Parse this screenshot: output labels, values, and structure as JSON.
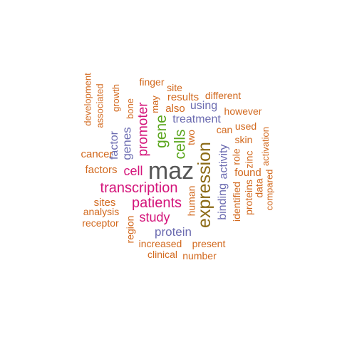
{
  "palette": {
    "gray": "#555555",
    "gold": "#8B6914",
    "green": "#5BA61E",
    "magenta": "#D4147A",
    "purple": "#6B6BB0",
    "orange": "#D2691E"
  },
  "words": [
    {
      "text": "maz",
      "color": "gray",
      "size": 4
    },
    {
      "text": "expression",
      "color": "gold",
      "size": 3
    },
    {
      "text": "cells",
      "color": "green",
      "size": 2
    },
    {
      "text": "gene",
      "color": "green",
      "size": 2
    },
    {
      "text": "promoter",
      "color": "magenta",
      "size": 2
    },
    {
      "text": "transcription",
      "color": "magenta",
      "size": 2
    },
    {
      "text": "patients",
      "color": "magenta",
      "size": 2
    },
    {
      "text": "study",
      "color": "magenta",
      "size": 2
    },
    {
      "text": "cell",
      "color": "magenta",
      "size": 2
    },
    {
      "text": "genes",
      "color": "purple",
      "size": 2
    },
    {
      "text": "protein",
      "color": "purple",
      "size": 2
    },
    {
      "text": "treatment",
      "color": "purple",
      "size": 2
    },
    {
      "text": "factor",
      "color": "purple",
      "size": 2
    },
    {
      "text": "binding",
      "color": "purple",
      "size": 2
    },
    {
      "text": "activity",
      "color": "purple",
      "size": 2
    },
    {
      "text": "using",
      "color": "purple",
      "size": 2
    },
    {
      "text": "results",
      "color": "orange",
      "size": 1
    },
    {
      "text": "also",
      "color": "orange",
      "size": 1
    },
    {
      "text": "two",
      "color": "orange",
      "size": 1
    },
    {
      "text": "human",
      "color": "orange",
      "size": 1
    },
    {
      "text": "cancer",
      "color": "orange",
      "size": 1
    },
    {
      "text": "factors",
      "color": "orange",
      "size": 1
    },
    {
      "text": "sites",
      "color": "orange",
      "size": 1
    },
    {
      "text": "analysis",
      "color": "orange",
      "size": 1
    },
    {
      "text": "receptor",
      "color": "orange",
      "size": 1
    },
    {
      "text": "region",
      "color": "orange",
      "size": 1
    },
    {
      "text": "increased",
      "color": "orange",
      "size": 1
    },
    {
      "text": "present",
      "color": "orange",
      "size": 1
    },
    {
      "text": "clinical",
      "color": "orange",
      "size": 1
    },
    {
      "text": "number",
      "color": "orange",
      "size": 1
    },
    {
      "text": "identified",
      "color": "orange",
      "size": 1
    },
    {
      "text": "found",
      "color": "orange",
      "size": 1
    },
    {
      "text": "role",
      "color": "orange",
      "size": 1
    },
    {
      "text": "proteins",
      "color": "orange",
      "size": 1
    },
    {
      "text": "zinc",
      "color": "orange",
      "size": 1
    },
    {
      "text": "data",
      "color": "orange",
      "size": 1
    },
    {
      "text": "compared",
      "color": "orange",
      "size": 1
    },
    {
      "text": "activation",
      "color": "orange",
      "size": 1
    },
    {
      "text": "skin",
      "color": "orange",
      "size": 1
    },
    {
      "text": "used",
      "color": "orange",
      "size": 1
    },
    {
      "text": "can",
      "color": "orange",
      "size": 1
    },
    {
      "text": "however",
      "color": "orange",
      "size": 1
    },
    {
      "text": "different",
      "color": "orange",
      "size": 1
    },
    {
      "text": "site",
      "color": "orange",
      "size": 1
    },
    {
      "text": "finger",
      "color": "orange",
      "size": 1
    },
    {
      "text": "may",
      "color": "orange",
      "size": 1
    },
    {
      "text": "bone",
      "color": "orange",
      "size": 1
    },
    {
      "text": "growth",
      "color": "orange",
      "size": 1
    },
    {
      "text": "associated",
      "color": "orange",
      "size": 1
    },
    {
      "text": "development",
      "color": "orange",
      "size": 1
    }
  ]
}
